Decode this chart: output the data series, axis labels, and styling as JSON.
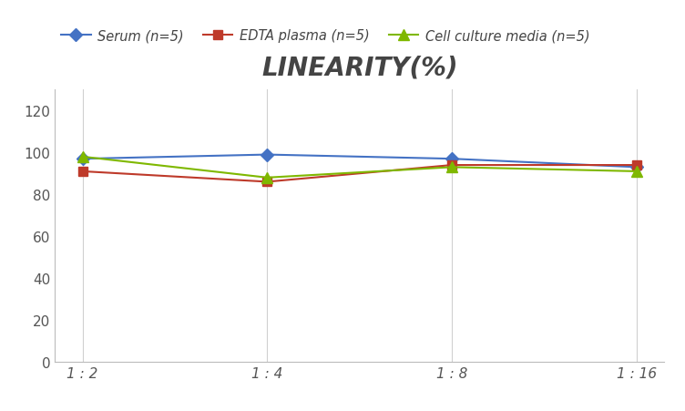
{
  "title": "LINEARITY(%)",
  "x_labels": [
    "1 : 2",
    "1 : 4",
    "1 : 8",
    "1 : 16"
  ],
  "series": [
    {
      "label": "Serum (n=5)",
      "values": [
        97,
        99,
        97,
        93
      ],
      "color": "#4472C4",
      "marker": "D",
      "marker_size": 7,
      "linewidth": 1.5
    },
    {
      "label": "EDTA plasma (n=5)",
      "values": [
        91,
        86,
        94,
        94
      ],
      "color": "#BE3A2A",
      "marker": "s",
      "marker_size": 7,
      "linewidth": 1.5
    },
    {
      "label": "Cell culture media (n=5)",
      "values": [
        98,
        88,
        93,
        91
      ],
      "color": "#7FB800",
      "marker": "^",
      "marker_size": 8,
      "linewidth": 1.5
    }
  ],
  "ylim": [
    0,
    130
  ],
  "yticks": [
    0,
    20,
    40,
    60,
    80,
    100,
    120
  ],
  "background_color": "#ffffff",
  "grid_color": "#d0d0d0",
  "title_fontsize": 20,
  "legend_fontsize": 10.5,
  "tick_fontsize": 11
}
